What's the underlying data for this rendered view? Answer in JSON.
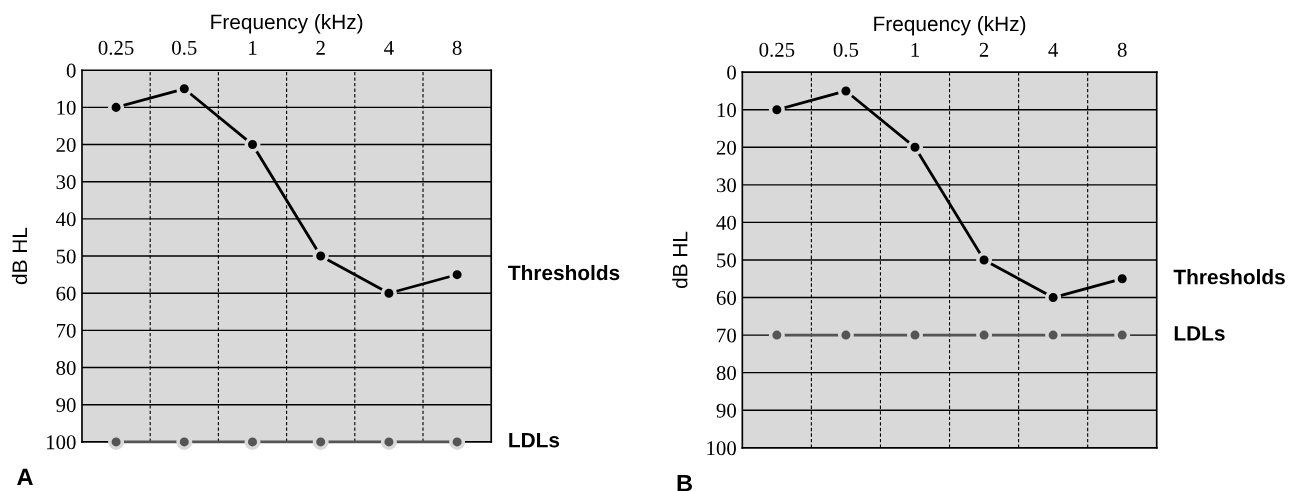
{
  "chart_data": [
    {
      "type": "line",
      "xlabel": "Frequency (kHz)",
      "ylabel": "dB HL",
      "categories": [
        "0.25",
        "0.5",
        "1",
        "2",
        "4",
        "8"
      ],
      "ylim": [
        100,
        0
      ],
      "yticks": [
        0,
        10,
        20,
        30,
        40,
        50,
        60,
        70,
        80,
        90,
        100
      ],
      "grid": true,
      "marker": "circle",
      "line_style": "solid",
      "annotations": [
        "A"
      ],
      "series": [
        {
          "name": "Thresholds",
          "color": "#000000",
          "values": [
            10,
            5,
            20,
            50,
            60,
            55
          ]
        },
        {
          "name": "LDLs",
          "color": "#555555",
          "values": [
            100,
            100,
            100,
            100,
            100,
            100
          ]
        }
      ]
    },
    {
      "type": "line",
      "xlabel": "Frequency (kHz)",
      "ylabel": "dB HL",
      "categories": [
        "0.25",
        "0.5",
        "1",
        "2",
        "4",
        "8"
      ],
      "ylim": [
        100,
        0
      ],
      "yticks": [
        0,
        10,
        20,
        30,
        40,
        50,
        60,
        70,
        80,
        90,
        100
      ],
      "grid": true,
      "marker": "circle",
      "line_style": "solid",
      "annotations": [
        "B"
      ],
      "series": [
        {
          "name": "Thresholds",
          "color": "#000000",
          "values": [
            10,
            5,
            20,
            50,
            60,
            55
          ]
        },
        {
          "name": "LDLs",
          "color": "#555555",
          "values": [
            70,
            70,
            70,
            70,
            70,
            70
          ]
        }
      ]
    }
  ]
}
